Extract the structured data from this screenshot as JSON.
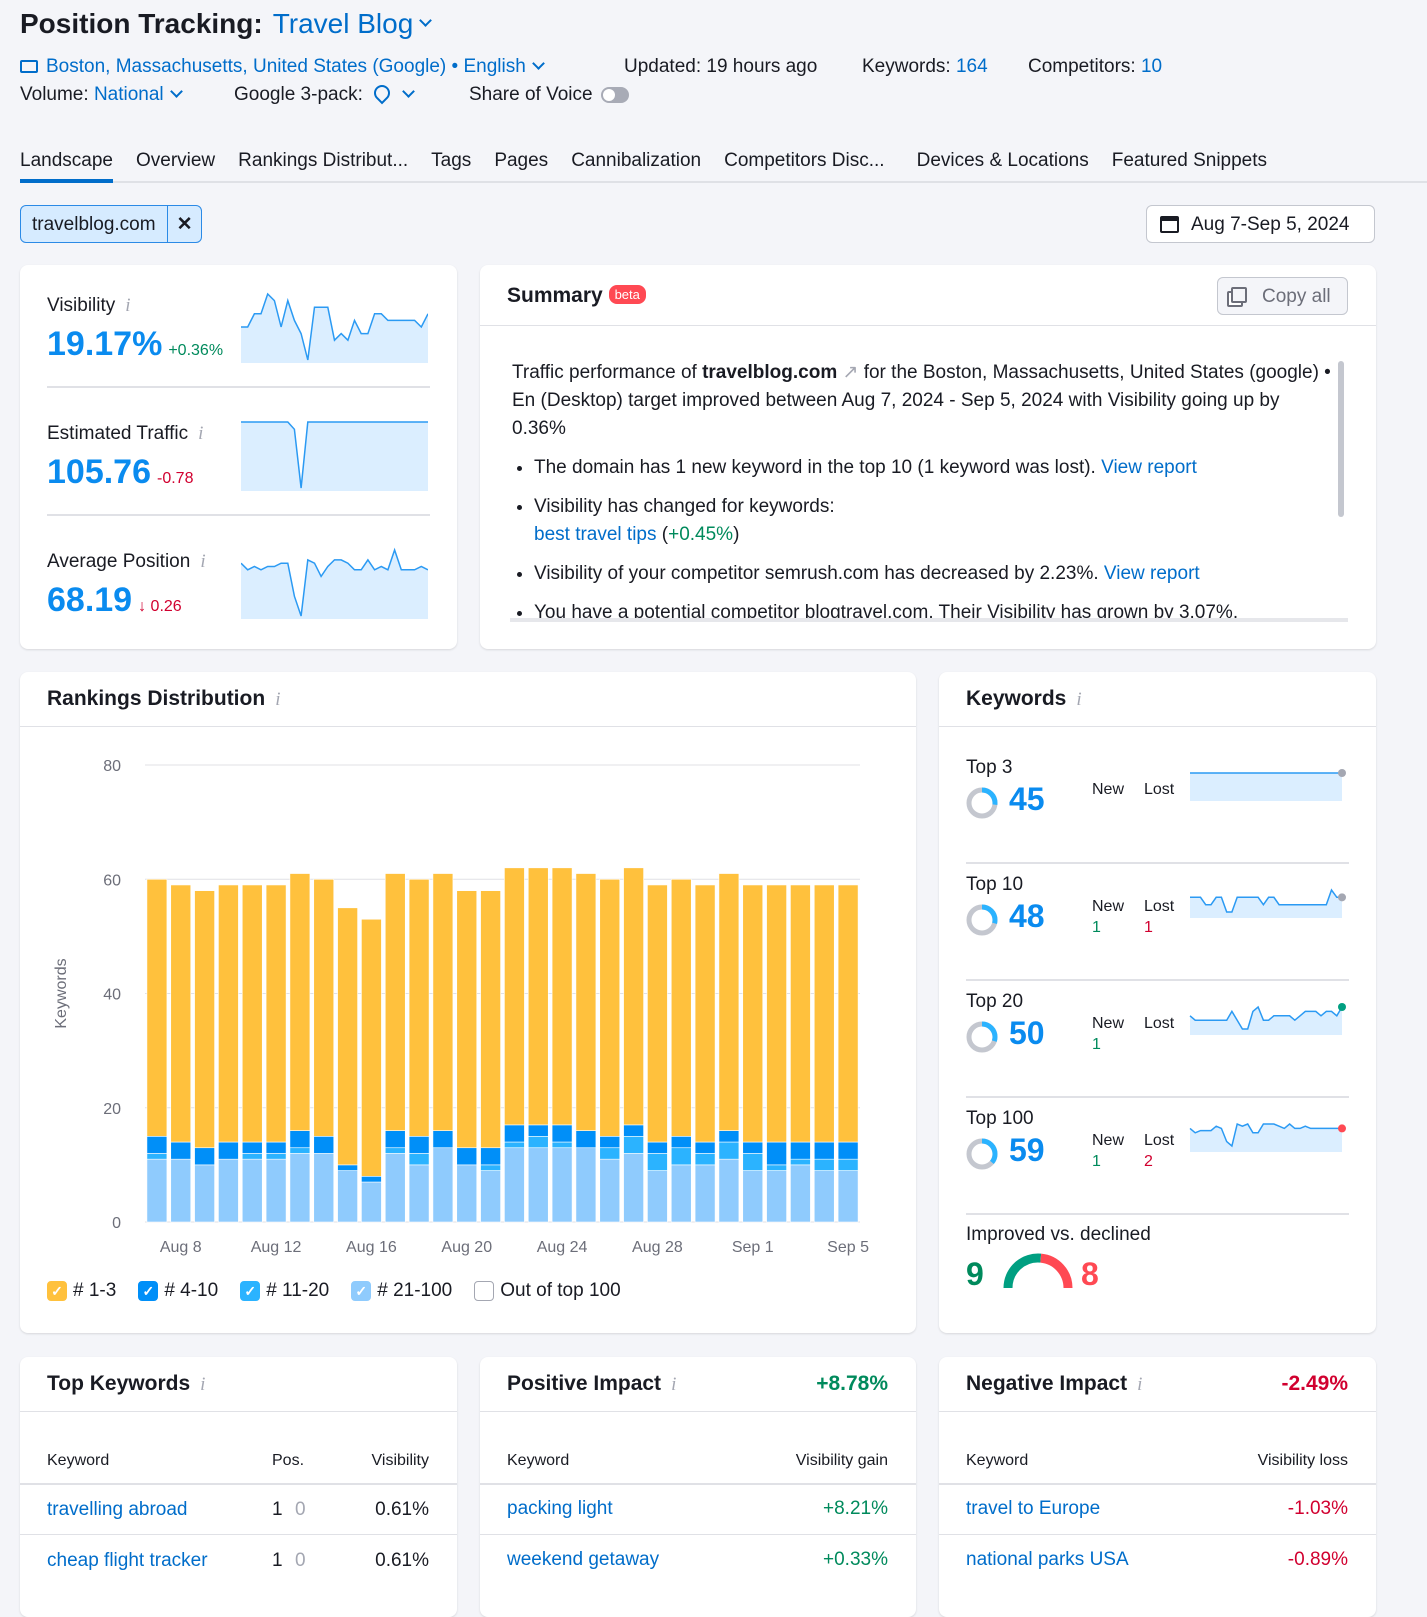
{
  "header": {
    "title": "Position Tracking:",
    "project": "Travel Blog",
    "location": "Boston, Massachusetts, United States (Google)",
    "language": "English",
    "updated": "Updated: 19 hours ago",
    "keywords_label": "Keywords:",
    "keywords_count": "164",
    "competitors_label": "Competitors:",
    "competitors_count": "10",
    "volume_label": "Volume:",
    "volume_value": "National",
    "pack_label": "Google 3-pack:",
    "sov_label": "Share of Voice"
  },
  "tabs": [
    "Landscape",
    "Overview",
    "Rankings Distribut...",
    "Tags",
    "Pages",
    "Cannibalization",
    "Competitors Disc...",
    "Devices & Locations",
    "Featured Snippets"
  ],
  "filter": {
    "domain": "travelblog.com",
    "close": "✕"
  },
  "date_range": "Aug 7-Sep 5, 2024",
  "metrics": [
    {
      "label": "Visibility",
      "value": "19.17%",
      "delta": "+0.36%",
      "delta_color": "green",
      "spark": [
        6,
        6,
        8,
        8,
        11,
        10,
        6,
        10,
        7,
        5,
        1,
        9,
        9,
        9,
        4,
        5,
        4,
        7,
        5,
        5,
        8,
        8,
        7,
        7,
        7,
        7,
        7,
        6,
        8
      ]
    },
    {
      "label": "Estimated Traffic",
      "value": "105.76",
      "delta": "-0.78",
      "delta_color": "red",
      "spark": [
        10,
        10,
        10,
        10,
        10,
        10,
        10,
        10,
        9,
        1,
        10,
        10,
        10,
        10,
        10,
        10,
        10,
        10,
        10,
        10,
        10,
        10,
        10,
        10,
        10,
        10,
        10,
        10,
        10
      ]
    },
    {
      "label": "Average Position",
      "value": "68.19",
      "delta": "↓ 0.26",
      "delta_color": "red",
      "spark": [
        8,
        7,
        7.5,
        7,
        7.5,
        7.5,
        8,
        8,
        3,
        0,
        8.5,
        8,
        6,
        7.5,
        8.5,
        8.5,
        8,
        7,
        7,
        8.5,
        7,
        7.5,
        7,
        10,
        7,
        7,
        7,
        7.5,
        7
      ]
    }
  ],
  "summary": {
    "title": "Summary",
    "badge": "beta",
    "copy": "Copy all",
    "p1": "Traffic performance of ",
    "domain": "travelblog.com",
    "p2": " for the Boston, Massachusetts, United States (google) • En (Desktop) target improved between Aug 7, 2024 - Sep 5, 2024 with Visibility going up by 0.36%",
    "b1": "The domain has 1 new keyword in the top 10 (1 keyword was lost). ",
    "view_report": "View report",
    "b2": "Visibility has changed for keywords:",
    "b2_kw": "best travel tips",
    "b2_delta": "+0.45%",
    "b3": "Visibility of your competitor semrush.com has decreased by 2.23%. ",
    "b4": "You have a potential competitor blogtravel.com. Their Visibility has grown by 3.07%."
  },
  "rankings": {
    "title": "Rankings Distribution"
  },
  "chart_data": {
    "type": "bar",
    "stacked": true,
    "ylabel": "Keywords",
    "ylim": [
      0,
      80
    ],
    "yticks": [
      0,
      20,
      40,
      60,
      80
    ],
    "grid": true,
    "categories": [
      "Aug 7",
      "Aug 8",
      "Aug 9",
      "Aug 10",
      "Aug 11",
      "Aug 12",
      "Aug 13",
      "Aug 14",
      "Aug 15",
      "Aug 16",
      "Aug 17",
      "Aug 18",
      "Aug 19",
      "Aug 20",
      "Aug 21",
      "Aug 22",
      "Aug 23",
      "Aug 24",
      "Aug 25",
      "Aug 26",
      "Aug 27",
      "Aug 28",
      "Aug 29",
      "Aug 30",
      "Aug 31",
      "Sep 1",
      "Sep 2",
      "Sep 3",
      "Sep 4",
      "Sep 5"
    ],
    "xtick_labels": [
      "Aug 8",
      "Aug 12",
      "Aug 16",
      "Aug 20",
      "Aug 24",
      "Aug 28",
      "Sep 1",
      "Sep 5"
    ],
    "series": [
      {
        "name": "# 21-100",
        "color": "#8fcbfd",
        "values": [
          11,
          11,
          10,
          11,
          11,
          11,
          12,
          12,
          9,
          7,
          12,
          10,
          13,
          10,
          9,
          13,
          13,
          13,
          13,
          11,
          12,
          9,
          10,
          10,
          11,
          9,
          9,
          10,
          9,
          9
        ]
      },
      {
        "name": "# 11-20",
        "color": "#2bb3ff",
        "values": [
          1,
          0,
          0,
          0,
          1,
          1,
          1,
          0,
          0,
          0,
          1,
          2,
          0,
          0,
          1,
          1,
          2,
          1,
          0,
          2,
          3,
          3,
          3,
          2,
          3,
          3,
          1,
          1,
          2,
          2
        ]
      },
      {
        "name": "# 4-10",
        "color": "#008ff8",
        "values": [
          3,
          3,
          3,
          3,
          2,
          2,
          3,
          3,
          1,
          1,
          3,
          3,
          3,
          3,
          3,
          3,
          2,
          3,
          3,
          2,
          2,
          2,
          2,
          2,
          2,
          2,
          4,
          3,
          3,
          3
        ]
      },
      {
        "name": "# 1-3",
        "color": "#ffc13d",
        "values": [
          45,
          45,
          45,
          45,
          45,
          45,
          45,
          45,
          45,
          45,
          45,
          45,
          45,
          45,
          45,
          45,
          45,
          45,
          45,
          45,
          45,
          45,
          45,
          45,
          45,
          45,
          45,
          45,
          45,
          45
        ]
      }
    ],
    "legend": [
      {
        "label": "# 1-3",
        "checked": true,
        "color": "#ffc13d"
      },
      {
        "label": "# 4-10",
        "checked": true,
        "color": "#008ff8"
      },
      {
        "label": "# 11-20",
        "checked": true,
        "color": "#2bb3ff"
      },
      {
        "label": "# 21-100",
        "checked": true,
        "color": "#8fcbfd"
      },
      {
        "label": "Out of top 100",
        "checked": false,
        "color": "#ffffff"
      }
    ],
    "legend_placement": "bottom"
  },
  "keywords": {
    "title": "Keywords",
    "new_label": "New",
    "lost_label": "Lost",
    "rows": [
      {
        "label": "Top 3",
        "value": "45",
        "new": "",
        "lost": "",
        "share": 0.27,
        "end": "#a4a7b2",
        "spark": [
          5,
          5,
          5,
          5,
          5,
          5,
          5,
          5,
          5,
          5,
          5,
          5,
          5,
          5,
          5,
          5,
          5,
          5,
          5,
          5,
          5,
          5,
          5,
          5,
          5,
          5,
          5,
          5,
          5,
          5
        ]
      },
      {
        "label": "Top 10",
        "value": "48",
        "new": "1",
        "lost": "1",
        "share": 0.29,
        "end": "#a4a7b2",
        "spark": [
          6,
          6,
          6,
          4,
          4,
          6,
          6,
          2,
          2,
          6,
          6,
          6,
          6,
          6,
          4,
          6,
          6,
          4,
          4,
          4,
          4,
          4,
          4,
          4,
          4,
          4,
          4,
          8,
          6,
          6
        ]
      },
      {
        "label": "Top 20",
        "value": "50",
        "new": "1",
        "lost": "",
        "share": 0.3,
        "end": "#009f81",
        "spark": [
          4,
          3,
          3,
          3,
          3,
          3,
          3,
          3,
          5,
          3,
          1,
          1,
          5,
          6,
          3,
          3,
          4,
          4,
          4,
          4,
          3,
          4,
          5,
          5,
          5,
          4,
          5,
          5,
          4,
          6
        ]
      },
      {
        "label": "Top 100",
        "value": "59",
        "new": "1",
        "lost": "2",
        "share": 0.36,
        "end": "#ff4953",
        "spark": [
          5,
          4,
          4.5,
          4.5,
          4.5,
          5.5,
          5,
          2,
          1,
          6,
          5.5,
          6,
          4,
          4,
          6,
          6,
          6,
          5.5,
          5,
          6,
          5,
          5,
          5.5,
          5,
          5,
          5,
          5,
          5,
          5,
          5
        ]
      }
    ],
    "improved_label": "Improved vs. declined",
    "improved": "9",
    "declined": "8"
  },
  "top_keywords": {
    "title": "Top Keywords",
    "headers": [
      "Keyword",
      "Pos.",
      "Visibility"
    ],
    "rows": [
      {
        "kw": "travelling abroad",
        "pos": "1",
        "diff": "0",
        "vis": "0.61%"
      },
      {
        "kw": "cheap flight tracker",
        "pos": "1",
        "diff": "0",
        "vis": "0.61%"
      }
    ]
  },
  "positive": {
    "title": "Positive Impact",
    "total": "+8.78%",
    "headers": [
      "Keyword",
      "Visibility gain"
    ],
    "rows": [
      {
        "kw": "packing light",
        "val": "+8.21%"
      },
      {
        "kw": "weekend getaway",
        "val": "+0.33%"
      }
    ]
  },
  "negative": {
    "title": "Negative Impact",
    "total": "-2.49%",
    "headers": [
      "Keyword",
      "Visibility loss"
    ],
    "rows": [
      {
        "kw": "travel to Europe",
        "val": "-1.03%"
      },
      {
        "kw": "national parks USA",
        "val": "-0.89%"
      }
    ]
  }
}
